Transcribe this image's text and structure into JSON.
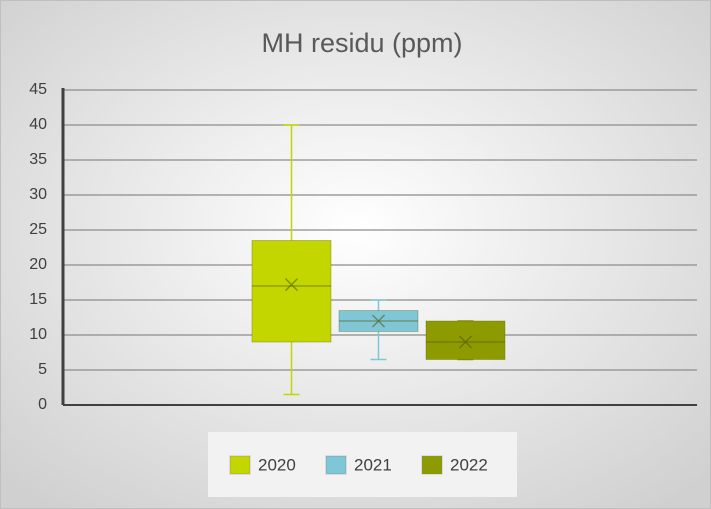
{
  "chart_data": {
    "type": "box",
    "title": "MH residu (ppm)",
    "ylim": [
      0,
      45
    ],
    "yticks": [
      0,
      5,
      10,
      15,
      20,
      25,
      30,
      35,
      40,
      45
    ],
    "grid": true,
    "legend": "bottom",
    "series": [
      {
        "name": "2020",
        "color": "#c3d600",
        "min": 1.5,
        "q1": 9,
        "median": 17,
        "q3": 23.5,
        "max": 40,
        "mean": 17.2
      },
      {
        "name": "2021",
        "color": "#7fc6d6",
        "min": 6.5,
        "q1": 10.5,
        "median": 12,
        "q3": 13.5,
        "max": 15,
        "mean": 12
      },
      {
        "name": "2022",
        "color": "#8e9b00",
        "min": 6.5,
        "q1": 6.5,
        "median": 9,
        "q3": 12,
        "max": 12,
        "mean": 9
      }
    ]
  }
}
